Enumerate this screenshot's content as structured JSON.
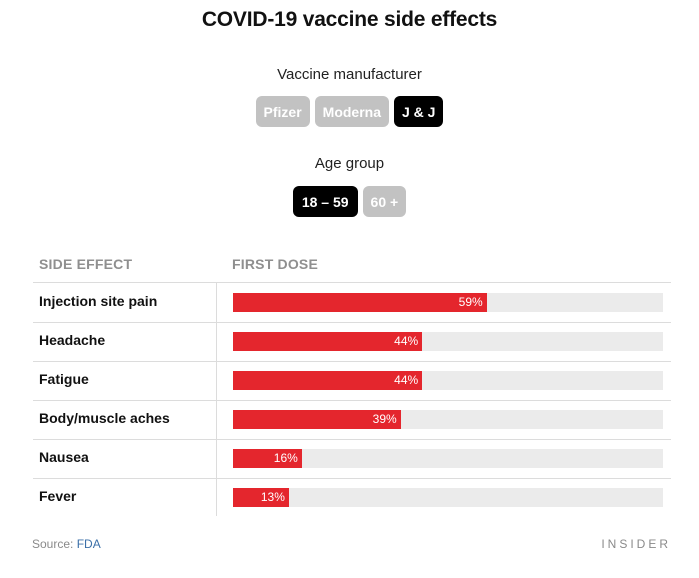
{
  "title": "COVID-19 vaccine side effects",
  "manufacturer": {
    "label": "Vaccine manufacturer",
    "options": [
      {
        "label": "Pfizer",
        "active": false
      },
      {
        "label": "Moderna",
        "active": false
      },
      {
        "label": "J & J",
        "active": true
      }
    ]
  },
  "age_group": {
    "label": "Age group",
    "options": [
      {
        "label": "18 – 59",
        "active": true
      },
      {
        "label": "60 +",
        "active": false
      }
    ]
  },
  "columns": {
    "side_effect": "SIDE EFFECT",
    "first_dose": "FIRST DOSE"
  },
  "colors": {
    "bar": "#e4262d",
    "track": "#ebebeb",
    "active_button": "#000000",
    "inactive_button": "#c2c2c2"
  },
  "chart_data": {
    "type": "bar",
    "orientation": "horizontal",
    "categories": [
      "Injection site pain",
      "Headache",
      "Fatigue",
      "Body/muscle aches",
      "Nausea",
      "Fever"
    ],
    "values": [
      59,
      44,
      44,
      39,
      16,
      13
    ],
    "value_labels": [
      "59%",
      "44%",
      "44%",
      "39%",
      "16%",
      "13%"
    ],
    "xlim": [
      0,
      100
    ],
    "title": "",
    "xlabel": "",
    "ylabel": ""
  },
  "footer": {
    "source_label": "Source: ",
    "source_name": "FDA",
    "brand": "INSIDER"
  }
}
